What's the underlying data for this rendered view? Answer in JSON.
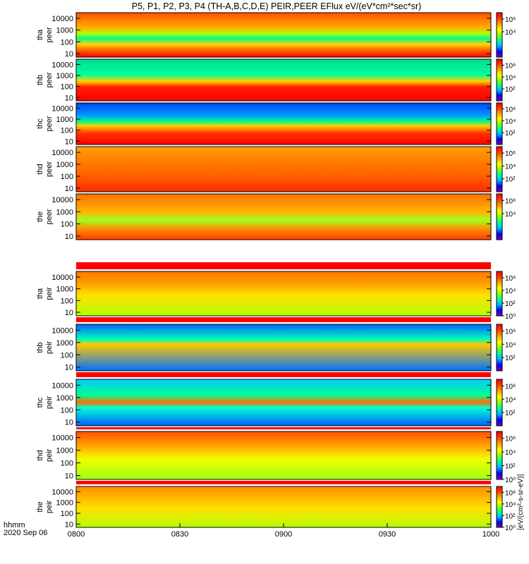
{
  "chart_data": {
    "type": "heatmap",
    "title": "P5, P1, P2, P3, P4 (TH-A,B,C,D,E) PEIR,PEER EFlux eV/(eV*cm²*sec*sr)",
    "time_axis": {
      "label_line1": "hhmm",
      "label_line2": "2020 Sep 06",
      "range": [
        "0800",
        "1000"
      ],
      "ticks": [
        "0800",
        "0830",
        "0900",
        "0930",
        "1000"
      ]
    },
    "energy_axis": {
      "scale": "log",
      "range": [
        5,
        30000
      ],
      "ticks": [
        {
          "value": 10,
          "label": "10"
        },
        {
          "value": 100,
          "label": "100"
        },
        {
          "value": 1000,
          "label": "1000"
        },
        {
          "value": 10000,
          "label": "10000"
        }
      ]
    },
    "colorbar": {
      "scale": "log",
      "colors": [
        "#7a00b4",
        "#0000ff",
        "#00b4ff",
        "#00ffa0",
        "#8cff00",
        "#ffff00",
        "#ffa000",
        "#ff3c00",
        "#ff0000"
      ],
      "title": "[eV/(cm²-s-sr-eV)]"
    },
    "panels": [
      {
        "line1": "tha",
        "line2": "peer",
        "bands": [
          {
            "e": 5,
            "c": "#ff0000"
          },
          {
            "e": 20,
            "c": "#ff6600"
          },
          {
            "e": 60,
            "c": "#ffd200"
          },
          {
            "e": 200,
            "c": "#00ff90"
          },
          {
            "e": 500,
            "c": "#b4ff00"
          },
          {
            "e": 1500,
            "c": "#ffb000"
          },
          {
            "e": 30000,
            "c": "#ff5000"
          }
        ],
        "cbar_ticks": [
          {
            "v": 10000,
            "l": "10⁴"
          },
          {
            "v": 1000000,
            "l": "10⁶"
          }
        ]
      },
      {
        "line1": "thb",
        "line2": "peer",
        "bands": [
          {
            "e": 5,
            "c": "#ff0000"
          },
          {
            "e": 90,
            "c": "#ff2000"
          },
          {
            "e": 300,
            "c": "#ffd200"
          },
          {
            "e": 1200,
            "c": "#00ffa0"
          },
          {
            "e": 30000,
            "c": "#00dc8c"
          }
        ],
        "cbar_ticks": [
          {
            "v": 100,
            "l": "10²"
          },
          {
            "v": 10000,
            "l": "10⁴"
          },
          {
            "v": 1000000,
            "l": "10⁶"
          }
        ]
      },
      {
        "line1": "thc",
        "line2": "peer",
        "bands": [
          {
            "e": 5,
            "c": "#ff0000"
          },
          {
            "e": 50,
            "c": "#ff3000"
          },
          {
            "e": 250,
            "c": "#ffcc00"
          },
          {
            "e": 600,
            "c": "#00ff80"
          },
          {
            "e": 2000,
            "c": "#00a0ff"
          },
          {
            "e": 30000,
            "c": "#0040ff"
          }
        ],
        "cbar_ticks": [
          {
            "v": 100,
            "l": "10²"
          },
          {
            "v": 10000,
            "l": "10⁴"
          },
          {
            "v": 1000000,
            "l": "10⁶"
          }
        ]
      },
      {
        "line1": "thd",
        "line2": "peer",
        "bands": [
          {
            "e": 5,
            "c": "#ff2a00"
          },
          {
            "e": 100,
            "c": "#ff6000"
          },
          {
            "e": 1500,
            "c": "#ff7c00"
          },
          {
            "e": 30000,
            "c": "#ffa000"
          }
        ],
        "cbar_ticks": [
          {
            "v": 100,
            "l": "10²"
          },
          {
            "v": 10000,
            "l": "10⁴"
          },
          {
            "v": 1000000,
            "l": "10⁶"
          }
        ]
      },
      {
        "line1": "the",
        "line2": "peer",
        "bands": [
          {
            "e": 5,
            "c": "#ff3c00"
          },
          {
            "e": 40,
            "c": "#ff9000"
          },
          {
            "e": 200,
            "c": "#a0ff20"
          },
          {
            "e": 1000,
            "c": "#ffb400"
          },
          {
            "e": 30000,
            "c": "#ff7000"
          }
        ],
        "cbar_ticks": [
          {
            "v": 10000,
            "l": "10⁴"
          },
          {
            "v": 1000000,
            "l": "10⁶"
          }
        ]
      },
      {
        "line1": "tha",
        "line2": "peir",
        "bands": [
          {
            "e": 5,
            "c": "#b4ff00"
          },
          {
            "e": 300,
            "c": "#ffe000"
          },
          {
            "e": 3000,
            "c": "#ff9c00"
          },
          {
            "e": 30000,
            "c": "#ff7800"
          }
        ],
        "cbar_ticks": [
          {
            "v": 1,
            "l": "10⁰"
          },
          {
            "v": 100,
            "l": "10²"
          },
          {
            "v": 10000,
            "l": "10⁴"
          },
          {
            "v": 1000000,
            "l": "10⁶"
          }
        ]
      },
      {
        "line1": "thb",
        "line2": "peir",
        "bands": [
          {
            "e": 5,
            "c": "#0070ff"
          },
          {
            "e": 700,
            "c": "#ffc800"
          },
          {
            "e": 1800,
            "c": "#00ffb4"
          },
          {
            "e": 30000,
            "c": "#0064ff"
          }
        ],
        "cbar_ticks": [
          {
            "v": 100,
            "l": "10²"
          },
          {
            "v": 10000,
            "l": "10⁴"
          },
          {
            "v": 1000000,
            "l": "10⁶"
          }
        ]
      },
      {
        "line1": "thc",
        "line2": "peir",
        "bands": [
          {
            "e": 5,
            "c": "#0060ff"
          },
          {
            "e": 150,
            "c": "#00ffd0"
          },
          {
            "e": 400,
            "c": "#ff7000"
          },
          {
            "e": 1500,
            "c": "#00ff90"
          },
          {
            "e": 30000,
            "c": "#00c8ff"
          }
        ],
        "cbar_ticks": [
          {
            "v": 100,
            "l": "10²"
          },
          {
            "v": 10000,
            "l": "10⁴"
          },
          {
            "v": 1000000,
            "l": "10⁶"
          }
        ]
      },
      {
        "line1": "thd",
        "line2": "peir",
        "bands": [
          {
            "e": 5,
            "c": "#a0ff10"
          },
          {
            "e": 200,
            "c": "#f0ff00"
          },
          {
            "e": 1500,
            "c": "#ffb000"
          },
          {
            "e": 30000,
            "c": "#ff5000"
          }
        ],
        "cbar_ticks": [
          {
            "v": 1,
            "l": "10⁰"
          },
          {
            "v": 100,
            "l": "10²"
          },
          {
            "v": 10000,
            "l": "10⁴"
          },
          {
            "v": 1000000,
            "l": "10⁶"
          }
        ]
      },
      {
        "line1": "the",
        "line2": "peir",
        "bands": [
          {
            "e": 5,
            "c": "#b4ff00"
          },
          {
            "e": 300,
            "c": "#ffe000"
          },
          {
            "e": 3000,
            "c": "#ffb400"
          },
          {
            "e": 30000,
            "c": "#ff9000"
          }
        ],
        "cbar_ticks": [
          {
            "v": 1,
            "l": "10⁰"
          },
          {
            "v": 100,
            "l": "10²"
          },
          {
            "v": 10000,
            "l": "10⁴"
          },
          {
            "v": 1000000,
            "l": "10⁶"
          }
        ]
      }
    ]
  }
}
